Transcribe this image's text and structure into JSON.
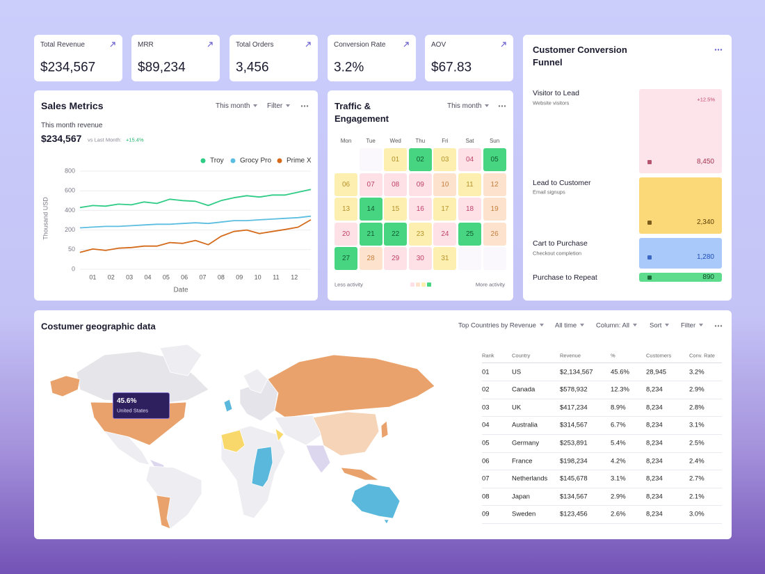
{
  "kpis": [
    {
      "label": "Total Revenue",
      "value": "$234,567"
    },
    {
      "label": "MRR",
      "value": "$89,234"
    },
    {
      "label": "Total Orders",
      "value": "3,456"
    },
    {
      "label": "Conversion Rate",
      "value": "3.2%"
    },
    {
      "label": "AOV",
      "value": "$67.83"
    }
  ],
  "sales": {
    "title": "Sales Metrics",
    "controls": [
      "This month",
      "Filter"
    ],
    "revenue_label": "This month revenue",
    "revenue": "$234,567",
    "comparison": "vs Last Month:",
    "change": "+15.4%",
    "chart": {
      "type": "line",
      "x": [
        0.3,
        1.0,
        1.7,
        2.4,
        3.1,
        3.8,
        4.5,
        5.2,
        5.9,
        6.6,
        7.3,
        8.0,
        8.7,
        9.4,
        10.1,
        10.8,
        11.5,
        12.2,
        12.9
      ],
      "xlim": [
        0.3,
        12.9
      ],
      "xticks": [
        {
          "value": 1,
          "label": "01"
        },
        {
          "value": 2,
          "label": "02"
        },
        {
          "value": 3,
          "label": "03"
        },
        {
          "value": 4,
          "label": "04"
        },
        {
          "value": 5,
          "label": "05"
        },
        {
          "value": 6,
          "label": "06"
        },
        {
          "value": 7,
          "label": "07"
        },
        {
          "value": 8,
          "label": "08"
        },
        {
          "value": 9,
          "label": "09"
        },
        {
          "value": 10,
          "label": "10"
        },
        {
          "value": 11,
          "label": "11"
        },
        {
          "value": 12,
          "label": "12"
        }
      ],
      "ylim": [
        0,
        800
      ],
      "yticks": [
        0,
        50,
        200,
        400,
        600,
        800
      ],
      "ylabel": "Thousand USD",
      "xlabel": "Date",
      "grid": true,
      "series": [
        {
          "name": "Troy",
          "color": "#2ecc85",
          "values": [
            429,
            450,
            443,
            464,
            457,
            486,
            471,
            514,
            500,
            493,
            450,
            500,
            529,
            550,
            536,
            557,
            557,
            586,
            614
          ]
        },
        {
          "name": "Grocy Pro",
          "color": "#5bbde0",
          "values": [
            222,
            230,
            237,
            237,
            244,
            252,
            259,
            259,
            267,
            274,
            267,
            281,
            296,
            296,
            304,
            311,
            319,
            326,
            341
          ]
        },
        {
          "name": "Prime X",
          "color": "#d46a1a",
          "values": [
            43,
            55,
            48,
            61,
            66,
            77,
            77,
            104,
            98,
            120,
            88,
            152,
            189,
            200,
            173,
            189,
            206,
            229,
            304
          ]
        }
      ]
    }
  },
  "traffic": {
    "title": "Traffic & Engagement",
    "control": "This month",
    "weekdays": [
      "Mon",
      "Tue",
      "Wed",
      "Thu",
      "Fri",
      "Sat",
      "Sun"
    ],
    "days": [
      "01",
      "02",
      "03",
      "04",
      "05",
      "06",
      "07",
      "08",
      "09",
      "10",
      "11",
      "12",
      "13",
      "14",
      "15",
      "16",
      "17",
      "18",
      "19",
      "20",
      "21",
      "22",
      "23",
      "24",
      "25",
      "26",
      "27",
      "28",
      "29",
      "30",
      "31"
    ],
    "levels": [
      "yellow",
      "green",
      "yellow",
      "pink",
      "green",
      "yellow",
      "pink",
      "pink",
      "pink",
      "peach",
      "yellow",
      "peach",
      "yellow",
      "green",
      "yellow",
      "pink",
      "yellow",
      "pink",
      "peach",
      "pink",
      "green",
      "green",
      "yellow",
      "pink",
      "green",
      "peach",
      "green",
      "peach",
      "pink",
      "pink",
      "yellow"
    ],
    "palette": {
      "green": {
        "bg": "#48d581",
        "fg": "#0f5a30"
      },
      "yellow": {
        "bg": "#fcefb0",
        "fg": "#b8922a"
      },
      "pink": {
        "bg": "#fde1e7",
        "fg": "#c0406a"
      },
      "peach": {
        "bg": "#fde3cd",
        "fg": "#c87e3c"
      }
    },
    "legend_low": "Less activity",
    "legend_high": "More activity",
    "legend_levels": [
      "pink",
      "peach",
      "yellow",
      "green"
    ]
  },
  "funnel": {
    "title": "Customer Conversion Funnel",
    "stages": [
      {
        "name": "Visitor to Lead",
        "sub": "Website visitors",
        "value": "8,450",
        "change": "+12.5%",
        "color": "#fde3ea",
        "text_color": "#a3324f"
      },
      {
        "name": "Lead to Customer",
        "sub": "Email signups",
        "value": "2,340",
        "color": "#fbd978",
        "text_color": "#5a3d05"
      },
      {
        "name": "Cart to Purchase",
        "sub": "Checkout completion",
        "value": "1,280",
        "color": "#a9c9fb",
        "text_color": "#1f4fb8"
      },
      {
        "name": "Purchase to Repeat",
        "value": "890",
        "color": "#5ddc8e",
        "text_color": "#0e4d27"
      }
    ]
  },
  "geo": {
    "title": "Costumer geographic data",
    "controls": [
      "Top Countries by Revenue",
      "All time",
      "Column: All",
      "Sort",
      "Filter"
    ],
    "tooltip": {
      "value": "45.6%",
      "label": "United States"
    },
    "table": {
      "columns": [
        "Rank",
        "Country",
        "Revenue",
        "%",
        "Customers",
        "Conv. Rate"
      ],
      "rows": [
        [
          "01",
          "US",
          "$2,134,567",
          "45.6%",
          "28,945",
          "3.2%"
        ],
        [
          "02",
          "Canada",
          "$578,932",
          "12.3%",
          "8,234",
          "2.9%"
        ],
        [
          "03",
          "UK",
          "$417,234",
          "8.9%",
          "8,234",
          "2.8%"
        ],
        [
          "04",
          "Australia",
          "$314,567",
          "6.7%",
          "8,234",
          "3.1%"
        ],
        [
          "05",
          "Germany",
          "$253,891",
          "5.4%",
          "8,234",
          "2.5%"
        ],
        [
          "06",
          "France",
          "$198,234",
          "4.2%",
          "8,234",
          "2.4%"
        ],
        [
          "07",
          "Netherlands",
          "$145,678",
          "3.1%",
          "8,234",
          "2.7%"
        ],
        [
          "08",
          "Japan",
          "$134,567",
          "2.9%",
          "8,234",
          "2.1%"
        ],
        [
          "09",
          "Sweden",
          "$123,456",
          "2.6%",
          "8,234",
          "3.0%"
        ]
      ]
    }
  }
}
